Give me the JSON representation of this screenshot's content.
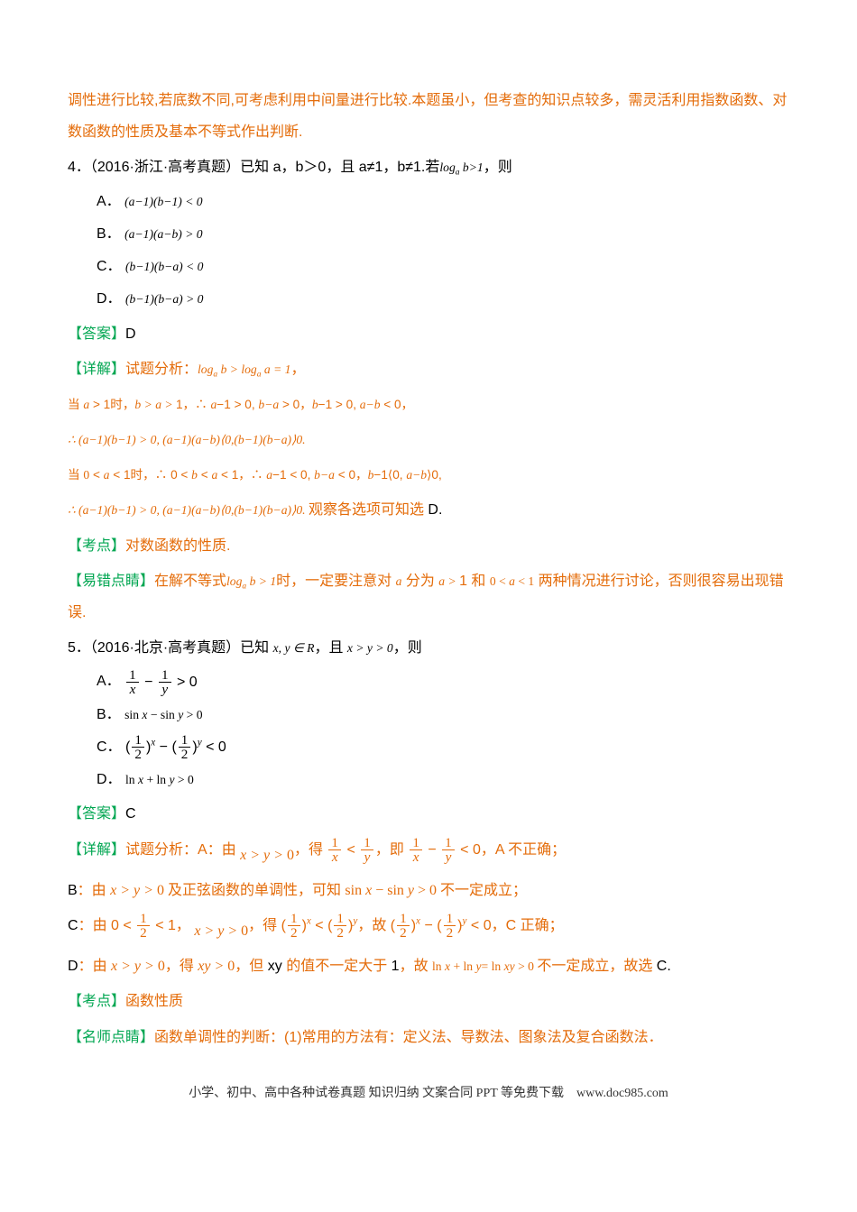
{
  "top_continuation": "调性进行比较,若底数不同,可考虑利用中间量进行比较.本题虽小，但考查的知识点较多，需灵活利用指数函数、对数函数的性质及基本不等式作出判断.",
  "q4": {
    "number": "4．",
    "source": "（2016·浙江·高考真题）",
    "stem_pre": "已知 a，b＞0，且 a≠1，b≠1.若",
    "stem_log": "log",
    "stem_post": "，则",
    "optA_label": "A．",
    "optA_math": "(a−1)(b−1) < 0",
    "optB_label": "B．",
    "optB_math": "(a−1)(a−b) > 0",
    "optC_label": "C．",
    "optC_math": "(b−1)(b−a) < 0",
    "optD_label": "D．",
    "optD_math": "(b−1)(b−a) > 0",
    "answer_label": "【答案】",
    "answer": "D",
    "detail_label": "【详解】",
    "detail_p1_a": "试题分析：",
    "detail_p1_math": "logₐb > logₐa = 1",
    "detail_p2": "当 a > 1 时，b > a > 1，∴ a−1 > 0, b−a > 0，b−1 > 0, a−b < 0，",
    "detail_p3": "∴ (a−1)(b−1) > 0, (a−1)(a−b)⟨0, (b−1)(b−a)⟩0.",
    "detail_p4": "当 0 < a < 1 时，∴ 0 < b < a < 1，∴ a−1 < 0, b−a < 0，b−1⟨0, a−b⟩0,",
    "detail_p5_a": "∴ (a−1)(b−1) > 0, (a−1)(a−b)⟨0, (b−1)(b−a)⟩0. ",
    "detail_p5_b": "观察各选项可知选 ",
    "detail_p5_c": "D.",
    "kaodian_label": "【考点】",
    "kaodian": "对数函数的性质.",
    "yicuo_label": "【易错点睛】",
    "yicuo_a": "在解不等式",
    "yicuo_math": " logₐb > 1 ",
    "yicuo_b": "时，一定要注意对 a 分为 a > 1 和 0 < a < 1 两种情况进行讨论，否则很容易出现错误."
  },
  "q5": {
    "number": "5．",
    "source": "（2016·北京·高考真题）",
    "stem_a": "已知 ",
    "stem_math": "x, y ∈ R",
    "stem_b": "，且 ",
    "stem_math2": "x > y > 0",
    "stem_c": "，则",
    "optA_label": "A．",
    "optB_label": "B．",
    "optB_math": "sin x − sin y > 0",
    "optC_label": "C．",
    "optD_label": "D．",
    "optD_math": "ln x + ln y > 0",
    "answer_label": "【答案】",
    "answer": "C",
    "detail_label": "【详解】",
    "detail_A_pre": "试题分析：A：由",
    "detail_A_m1": "x > y > 0",
    "detail_A_mid1": "，得",
    "detail_A_mid2": "，即",
    "detail_A_post": "，A 不正确；",
    "detail_B_pre": "B：由",
    "detail_B_m1": "x > y > 0",
    "detail_B_mid": "及正弦函数的单调性，可知",
    "detail_B_m2": "sin x − sin y > 0",
    "detail_B_post": "不一定成立；",
    "detail_C_pre": "C：由",
    "detail_C_mid1": "，",
    "detail_C_m2": "x > y > 0",
    "detail_C_mid2": "，得",
    "detail_C_mid3": "，故",
    "detail_C_post": "，C 正确；",
    "detail_D_pre": "D：由",
    "detail_D_m1": "x > y > 0",
    "detail_D_mid1": "，得",
    "detail_D_m2": "xy > 0",
    "detail_D_mid2": "，但 xy 的值不一定大于 1，故",
    "detail_D_m3": "ln x + ln y= ln xy > 0",
    "detail_D_post": "不一定成立，故选 C.",
    "kaodian_label": "【考点】",
    "kaodian": "函数性质",
    "mingshi_label": "【名师点睛】",
    "mingshi": "函数单调性的判断：(1)常用的方法有：定义法、导数法、图象法及复合函数法．"
  },
  "footer": "小学、初中、高中各种试卷真题 知识归纳 文案合同 PPT 等免费下载　www.doc985.com",
  "colors": {
    "orange": "#e46c0a",
    "green": "#00a651",
    "red": "#ff0000",
    "blue": "#0070c0",
    "black": "#000000"
  }
}
